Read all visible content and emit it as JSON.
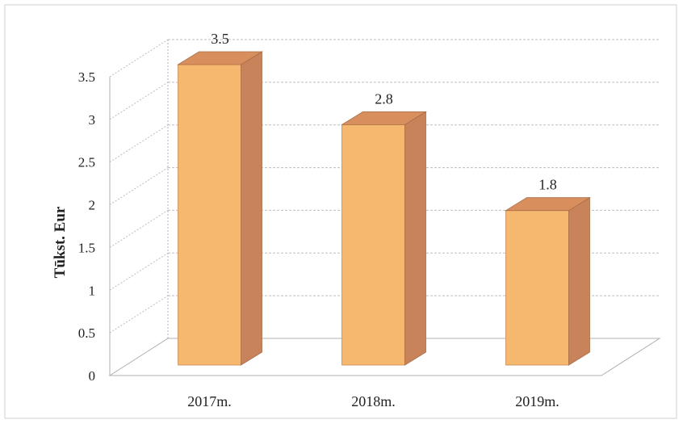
{
  "chart_data": {
    "type": "bar",
    "categories": [
      "2017m.",
      "2018m.",
      "2019m."
    ],
    "values": [
      3.5,
      2.8,
      1.8
    ],
    "data_labels": [
      "3.5",
      "2.8",
      "1.8"
    ],
    "title": "",
    "xlabel": "",
    "ylabel": "Tūkst. Eur",
    "ylim": [
      0,
      3.5
    ],
    "yticks": [
      "0",
      "0.5",
      "1",
      "1.5",
      "2",
      "2.5",
      "3",
      "3.5"
    ],
    "grid": true,
    "legend": "none",
    "three_d": true,
    "colors": {
      "bar_front": "#F6B86E",
      "bar_side": "#C9835B",
      "bar_top": "#D98E5E",
      "gridline": "#BDBDBD",
      "frame": "#B0B0B0"
    }
  }
}
